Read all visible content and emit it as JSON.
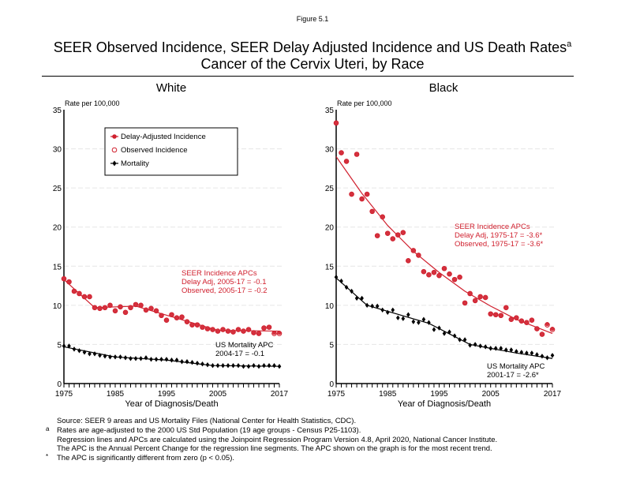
{
  "figure_label": "Figure 5.1",
  "title_line1": "SEER Observed Incidence, SEER Delay Adjusted Incidence and US Death Rates",
  "title_sup": "a",
  "title_line2": "Cancer of the Cervix Uteri, by Race",
  "legend": {
    "items": [
      {
        "label": "Delay-Adjusted Incidence",
        "marker": "filled-circle",
        "color": "#d0202e"
      },
      {
        "label": "Observed Incidence",
        "marker": "open-circle",
        "color": "#d0202e"
      },
      {
        "label": "Mortality",
        "marker": "diamond",
        "color": "#000000"
      }
    ]
  },
  "colors": {
    "incidence": "#d0202e",
    "mortality": "#000000",
    "grid": "#e6e6e6"
  },
  "footnotes": [
    {
      "mark": "",
      "text": "Source: SEER 9 areas and US Mortality Files (National Center for Health Statistics, CDC)."
    },
    {
      "mark": "a",
      "text": "Rates are age-adjusted to the 2000 US Std Population (19 age groups - Census P25-1103)."
    },
    {
      "mark": "",
      "text": "Regression lines and APCs are calculated using the Joinpoint Regression Program Version 4.8, April 2020, National Cancer Institute."
    },
    {
      "mark": "",
      "text": "The APC is the Annual Percent Change for the regression line segments. The APC shown on the graph is for the most recent trend."
    },
    {
      "mark": "*",
      "text": "The APC is significantly different from zero (p < 0.05)."
    }
  ],
  "chart_data": [
    {
      "type": "scatter",
      "title": "White",
      "ylabel": "Rate per 100,000",
      "xlabel": "Year of Diagnosis/Death",
      "xlim": [
        1975,
        2017
      ],
      "ylim": [
        0,
        35
      ],
      "xticks": [
        1975,
        1985,
        1995,
        2005,
        2017
      ],
      "yticks": [
        0,
        5,
        10,
        15,
        20,
        25,
        30,
        35
      ],
      "grid": true,
      "legend_position": "top-left",
      "annotations": [
        {
          "id": "incidence-apc",
          "color": "#d0202e",
          "lines": [
            "SEER Incidence APCs",
            "Delay Adj, 2005-17 = -0.1",
            "Observed, 2005-17 = -0.2"
          ]
        },
        {
          "id": "mortality-apc",
          "color": "#000000",
          "lines": [
            "US Mortality APC",
            "2004-17 = -0.1"
          ]
        }
      ],
      "x": [
        1975,
        1976,
        1977,
        1978,
        1979,
        1980,
        1981,
        1982,
        1983,
        1984,
        1985,
        1986,
        1987,
        1988,
        1989,
        1990,
        1991,
        1992,
        1993,
        1994,
        1995,
        1996,
        1997,
        1998,
        1999,
        2000,
        2001,
        2002,
        2003,
        2004,
        2005,
        2006,
        2007,
        2008,
        2009,
        2010,
        2011,
        2012,
        2013,
        2014,
        2015,
        2016,
        2017
      ],
      "series": [
        {
          "name": "Delay-Adjusted Incidence",
          "values": [
            13.4,
            13.0,
            11.8,
            11.5,
            11.1,
            11.1,
            9.7,
            9.6,
            9.7,
            10.0,
            9.3,
            9.8,
            9.1,
            9.7,
            10.1,
            10.0,
            9.4,
            9.6,
            9.3,
            8.7,
            8.1,
            8.8,
            8.4,
            8.5,
            7.9,
            7.5,
            7.5,
            7.2,
            7.0,
            6.9,
            6.7,
            6.9,
            6.7,
            6.6,
            6.9,
            6.7,
            6.9,
            6.5,
            6.4,
            7.1,
            7.2,
            6.5,
            6.5
          ]
        },
        {
          "name": "Observed Incidence",
          "values": [
            13.4,
            13.0,
            11.8,
            11.5,
            11.1,
            11.1,
            9.7,
            9.6,
            9.7,
            10.0,
            9.3,
            9.8,
            9.1,
            9.7,
            10.1,
            10.0,
            9.4,
            9.6,
            9.3,
            8.7,
            8.1,
            8.8,
            8.4,
            8.5,
            7.9,
            7.5,
            7.5,
            7.2,
            7.0,
            6.9,
            6.7,
            6.9,
            6.7,
            6.6,
            6.9,
            6.7,
            6.9,
            6.5,
            6.4,
            7.1,
            7.2,
            6.4,
            6.4
          ]
        },
        {
          "name": "Mortality",
          "values": [
            4.8,
            4.8,
            4.4,
            4.2,
            4.0,
            3.8,
            3.8,
            3.6,
            3.5,
            3.4,
            3.4,
            3.4,
            3.3,
            3.2,
            3.2,
            3.2,
            3.3,
            3.1,
            3.1,
            3.1,
            3.1,
            3.0,
            3.0,
            2.8,
            2.8,
            2.7,
            2.6,
            2.5,
            2.4,
            2.3,
            2.3,
            2.3,
            2.3,
            2.3,
            2.3,
            2.2,
            2.2,
            2.3,
            2.2,
            2.3,
            2.3,
            2.3,
            2.2
          ]
        }
      ],
      "fit_lines": [
        {
          "name": "Delay-Adjusted Incidence fit",
          "x": [
            1975,
            1981,
            1989,
            2005,
            2017
          ],
          "y": [
            13.3,
            9.7,
            9.9,
            6.8,
            6.7
          ]
        },
        {
          "name": "Mortality fit",
          "x": [
            1975,
            1985,
            1995,
            2004,
            2017
          ],
          "y": [
            4.7,
            3.4,
            3.0,
            2.3,
            2.2
          ]
        }
      ]
    },
    {
      "type": "scatter",
      "title": "Black",
      "ylabel": "Rate per 100,000",
      "xlabel": "Year of Diagnosis/Death",
      "xlim": [
        1975,
        2017
      ],
      "ylim": [
        0,
        35
      ],
      "xticks": [
        1975,
        1985,
        1995,
        2005,
        2017
      ],
      "yticks": [
        0,
        5,
        10,
        15,
        20,
        25,
        30,
        35
      ],
      "grid": true,
      "annotations": [
        {
          "id": "incidence-apc",
          "color": "#d0202e",
          "lines": [
            "SEER Incidence APCs",
            "Delay Adj, 1975-17 = -3.6*",
            "Observed, 1975-17 = -3.6*"
          ]
        },
        {
          "id": "mortality-apc",
          "color": "#000000",
          "lines": [
            "US Mortality APC",
            "2001-17 = -2.6*"
          ]
        }
      ],
      "x": [
        1975,
        1976,
        1977,
        1978,
        1979,
        1980,
        1981,
        1982,
        1983,
        1984,
        1985,
        1986,
        1987,
        1988,
        1989,
        1990,
        1991,
        1992,
        1993,
        1994,
        1995,
        1996,
        1997,
        1998,
        1999,
        2000,
        2001,
        2002,
        2003,
        2004,
        2005,
        2006,
        2007,
        2008,
        2009,
        2010,
        2011,
        2012,
        2013,
        2014,
        2015,
        2016,
        2017
      ],
      "series": [
        {
          "name": "Delay-Adjusted Incidence",
          "values": [
            33.3,
            29.5,
            28.4,
            24.2,
            29.3,
            23.6,
            24.2,
            22.0,
            18.9,
            21.3,
            19.2,
            18.5,
            19.0,
            19.3,
            15.7,
            17.0,
            16.4,
            14.3,
            13.9,
            14.2,
            13.8,
            14.7,
            14.0,
            13.3,
            13.6,
            10.3,
            11.5,
            10.6,
            11.1,
            11.0,
            8.9,
            8.8,
            8.7,
            9.7,
            8.2,
            8.4,
            8.0,
            7.8,
            8.1,
            7.0,
            6.3,
            7.6,
            7.0
          ]
        },
        {
          "name": "Observed Incidence",
          "values": [
            33.3,
            29.5,
            28.4,
            24.2,
            29.3,
            23.6,
            24.2,
            22.0,
            18.9,
            21.3,
            19.2,
            18.5,
            19.0,
            19.3,
            15.7,
            17.0,
            16.4,
            14.3,
            13.9,
            14.2,
            13.8,
            14.7,
            14.0,
            13.3,
            13.6,
            10.3,
            11.5,
            10.6,
            11.1,
            11.0,
            8.9,
            8.8,
            8.7,
            9.7,
            8.2,
            8.4,
            8.0,
            7.8,
            8.1,
            7.0,
            6.3,
            7.5,
            6.9
          ]
        },
        {
          "name": "Mortality",
          "values": [
            13.6,
            13.1,
            12.3,
            11.8,
            10.9,
            10.9,
            10.0,
            9.9,
            9.9,
            9.4,
            9.1,
            9.4,
            8.4,
            8.3,
            8.8,
            7.9,
            7.8,
            8.2,
            7.8,
            6.9,
            7.1,
            6.4,
            6.6,
            6.1,
            5.6,
            5.6,
            4.9,
            5.0,
            4.8,
            4.7,
            4.5,
            4.5,
            4.5,
            4.3,
            4.3,
            4.1,
            4.0,
            3.9,
            3.9,
            3.7,
            3.5,
            3.3,
            3.6
          ]
        }
      ],
      "fit_lines": [
        {
          "name": "Delay-Adjusted Incidence fit",
          "x": [
            1975,
            1980,
            1985,
            1990,
            1995,
            2000,
            2005,
            2010,
            2017
          ],
          "y": [
            29.0,
            24.3,
            20.2,
            16.9,
            14.2,
            11.8,
            9.9,
            8.2,
            6.4
          ]
        },
        {
          "name": "Mortality fit",
          "x": [
            1975,
            1981,
            1993,
            2001,
            2005,
            2010,
            2017
          ],
          "y": [
            13.5,
            10.0,
            7.7,
            5.0,
            4.5,
            3.9,
            3.2
          ]
        }
      ]
    }
  ]
}
